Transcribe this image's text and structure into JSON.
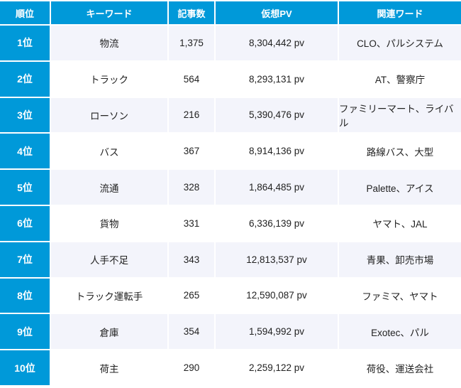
{
  "colors": {
    "header_bg": "#0099d9",
    "odd_row_bg": "#f3f4fb",
    "even_row_bg": "#ffffff"
  },
  "headers": [
    "順位",
    "キーワード",
    "記事数",
    "仮想PV",
    "関連ワード"
  ],
  "rows": [
    [
      "1位",
      "物流",
      "1,375",
      "8,304,442 pv",
      "CLO、パルシステム"
    ],
    [
      "2位",
      "トラック",
      "564",
      "8,293,131 pv",
      "AT、警察庁"
    ],
    [
      "3位",
      "ローソン",
      "216",
      "5,390,476 pv",
      "ファミリーマート、ライバル"
    ],
    [
      "4位",
      "バス",
      "367",
      "8,914,136 pv",
      "路線バス、大型"
    ],
    [
      "5位",
      "流通",
      "328",
      "1,864,485 pv",
      "Palette、アイス"
    ],
    [
      "6位",
      "貨物",
      "331",
      "6,336,139 pv",
      "ヤマト、JAL"
    ],
    [
      "7位",
      "人手不足",
      "343",
      "12,813,537 pv",
      "青果、卸売市場"
    ],
    [
      "8位",
      "トラック運転手",
      "265",
      "12,590,087 pv",
      "ファミマ、ヤマト"
    ],
    [
      "9位",
      "倉庫",
      "354",
      "1,594,992 pv",
      "Exotec、パル"
    ],
    [
      "10位",
      "荷主",
      "290",
      "2,259,122 pv",
      "荷役、運送会社"
    ]
  ]
}
